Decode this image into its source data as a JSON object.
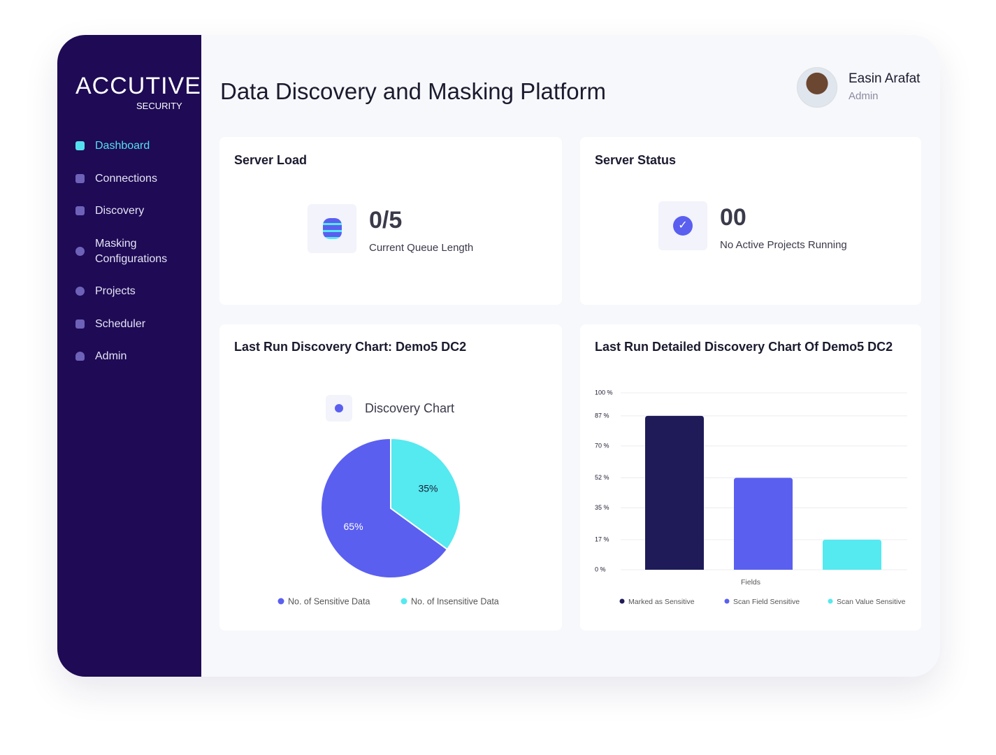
{
  "brand": {
    "name": "ACCUTIVE",
    "tagline": "SECURITY"
  },
  "nav": [
    "Dashboard",
    "Connections",
    "Discovery",
    "Masking Configurations",
    "Projects",
    "Scheduler",
    "Admin"
  ],
  "header": {
    "title": "Data Discovery and Masking Platform",
    "user_name": "Easin Arafat",
    "user_role": "Admin"
  },
  "cards": [
    {
      "title": "Server Load",
      "value": "0/5",
      "caption": "Current Queue Length"
    },
    {
      "title": "Server Status",
      "value": "00",
      "caption": "No Active Projects Running"
    }
  ],
  "chart_data": [
    {
      "type": "pie",
      "title": "Last Run Discovery Chart: Demo5 DC2",
      "subtitle": "Discovery Chart",
      "categories": [
        "No. of Sensitive Data",
        "No. of Insensitive Data"
      ],
      "values": [
        65,
        35
      ],
      "value_labels": [
        "65%",
        "35%"
      ],
      "colors": [
        "#5a5ff0",
        "#55e9f0"
      ]
    },
    {
      "type": "bar",
      "title": "Last Run Detailed Discovery Chart Of Demo5 DC2",
      "x_label": "Fields",
      "ylim": [
        0,
        100
      ],
      "yticks": [
        {
          "value": 0,
          "label": "0 %"
        },
        {
          "value": 17,
          "label": "17 %"
        },
        {
          "value": 35,
          "label": "35 %"
        },
        {
          "value": 52,
          "label": "52 %"
        },
        {
          "value": 70,
          "label": "70 %"
        },
        {
          "value": 87,
          "label": "87 %"
        },
        {
          "value": 100,
          "label": "100 %"
        }
      ],
      "grid": true,
      "series": [
        {
          "name": "Marked as Sensitive",
          "color": "#1e1b58",
          "values": [
            87
          ]
        },
        {
          "name": "Scan Field Sensitive",
          "color": "#5a5ff0",
          "values": [
            52
          ]
        },
        {
          "name": "Scan Value Sensitive",
          "color": "#55e9f0",
          "values": [
            17
          ]
        }
      ]
    }
  ]
}
